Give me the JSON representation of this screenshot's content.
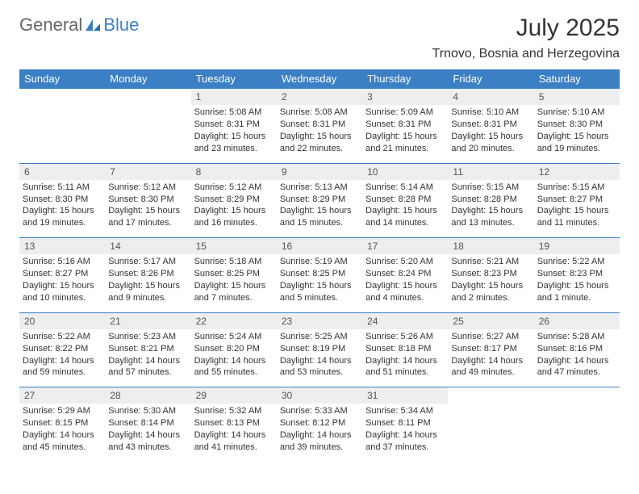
{
  "brand": {
    "word1": "General",
    "word2": "Blue"
  },
  "title": "July 2025",
  "location": "Trnovo, Bosnia and Herzegovina",
  "columns": [
    "Sunday",
    "Monday",
    "Tuesday",
    "Wednesday",
    "Thursday",
    "Friday",
    "Saturday"
  ],
  "colors": {
    "header_bg": "#3b7fc4",
    "header_fg": "#ffffff",
    "daynum_bg": "#eceeef",
    "stripe": "#3b7fc4"
  },
  "weeks": [
    {
      "nums": [
        "",
        "",
        "1",
        "2",
        "3",
        "4",
        "5"
      ],
      "cells": [
        [],
        [],
        [
          "Sunrise: 5:08 AM",
          "Sunset: 8:31 PM",
          "Daylight: 15 hours",
          "and 23 minutes."
        ],
        [
          "Sunrise: 5:08 AM",
          "Sunset: 8:31 PM",
          "Daylight: 15 hours",
          "and 22 minutes."
        ],
        [
          "Sunrise: 5:09 AM",
          "Sunset: 8:31 PM",
          "Daylight: 15 hours",
          "and 21 minutes."
        ],
        [
          "Sunrise: 5:10 AM",
          "Sunset: 8:31 PM",
          "Daylight: 15 hours",
          "and 20 minutes."
        ],
        [
          "Sunrise: 5:10 AM",
          "Sunset: 8:30 PM",
          "Daylight: 15 hours",
          "and 19 minutes."
        ]
      ]
    },
    {
      "nums": [
        "6",
        "7",
        "8",
        "9",
        "10",
        "11",
        "12"
      ],
      "cells": [
        [
          "Sunrise: 5:11 AM",
          "Sunset: 8:30 PM",
          "Daylight: 15 hours",
          "and 19 minutes."
        ],
        [
          "Sunrise: 5:12 AM",
          "Sunset: 8:30 PM",
          "Daylight: 15 hours",
          "and 17 minutes."
        ],
        [
          "Sunrise: 5:12 AM",
          "Sunset: 8:29 PM",
          "Daylight: 15 hours",
          "and 16 minutes."
        ],
        [
          "Sunrise: 5:13 AM",
          "Sunset: 8:29 PM",
          "Daylight: 15 hours",
          "and 15 minutes."
        ],
        [
          "Sunrise: 5:14 AM",
          "Sunset: 8:28 PM",
          "Daylight: 15 hours",
          "and 14 minutes."
        ],
        [
          "Sunrise: 5:15 AM",
          "Sunset: 8:28 PM",
          "Daylight: 15 hours",
          "and 13 minutes."
        ],
        [
          "Sunrise: 5:15 AM",
          "Sunset: 8:27 PM",
          "Daylight: 15 hours",
          "and 11 minutes."
        ]
      ]
    },
    {
      "nums": [
        "13",
        "14",
        "15",
        "16",
        "17",
        "18",
        "19"
      ],
      "cells": [
        [
          "Sunrise: 5:16 AM",
          "Sunset: 8:27 PM",
          "Daylight: 15 hours",
          "and 10 minutes."
        ],
        [
          "Sunrise: 5:17 AM",
          "Sunset: 8:26 PM",
          "Daylight: 15 hours",
          "and 9 minutes."
        ],
        [
          "Sunrise: 5:18 AM",
          "Sunset: 8:25 PM",
          "Daylight: 15 hours",
          "and 7 minutes."
        ],
        [
          "Sunrise: 5:19 AM",
          "Sunset: 8:25 PM",
          "Daylight: 15 hours",
          "and 5 minutes."
        ],
        [
          "Sunrise: 5:20 AM",
          "Sunset: 8:24 PM",
          "Daylight: 15 hours",
          "and 4 minutes."
        ],
        [
          "Sunrise: 5:21 AM",
          "Sunset: 8:23 PM",
          "Daylight: 15 hours",
          "and 2 minutes."
        ],
        [
          "Sunrise: 5:22 AM",
          "Sunset: 8:23 PM",
          "Daylight: 15 hours",
          "and 1 minute."
        ]
      ]
    },
    {
      "nums": [
        "20",
        "21",
        "22",
        "23",
        "24",
        "25",
        "26"
      ],
      "cells": [
        [
          "Sunrise: 5:22 AM",
          "Sunset: 8:22 PM",
          "Daylight: 14 hours",
          "and 59 minutes."
        ],
        [
          "Sunrise: 5:23 AM",
          "Sunset: 8:21 PM",
          "Daylight: 14 hours",
          "and 57 minutes."
        ],
        [
          "Sunrise: 5:24 AM",
          "Sunset: 8:20 PM",
          "Daylight: 14 hours",
          "and 55 minutes."
        ],
        [
          "Sunrise: 5:25 AM",
          "Sunset: 8:19 PM",
          "Daylight: 14 hours",
          "and 53 minutes."
        ],
        [
          "Sunrise: 5:26 AM",
          "Sunset: 8:18 PM",
          "Daylight: 14 hours",
          "and 51 minutes."
        ],
        [
          "Sunrise: 5:27 AM",
          "Sunset: 8:17 PM",
          "Daylight: 14 hours",
          "and 49 minutes."
        ],
        [
          "Sunrise: 5:28 AM",
          "Sunset: 8:16 PM",
          "Daylight: 14 hours",
          "and 47 minutes."
        ]
      ]
    },
    {
      "nums": [
        "27",
        "28",
        "29",
        "30",
        "31",
        "",
        ""
      ],
      "cells": [
        [
          "Sunrise: 5:29 AM",
          "Sunset: 8:15 PM",
          "Daylight: 14 hours",
          "and 45 minutes."
        ],
        [
          "Sunrise: 5:30 AM",
          "Sunset: 8:14 PM",
          "Daylight: 14 hours",
          "and 43 minutes."
        ],
        [
          "Sunrise: 5:32 AM",
          "Sunset: 8:13 PM",
          "Daylight: 14 hours",
          "and 41 minutes."
        ],
        [
          "Sunrise: 5:33 AM",
          "Sunset: 8:12 PM",
          "Daylight: 14 hours",
          "and 39 minutes."
        ],
        [
          "Sunrise: 5:34 AM",
          "Sunset: 8:11 PM",
          "Daylight: 14 hours",
          "and 37 minutes."
        ],
        [],
        []
      ]
    }
  ]
}
